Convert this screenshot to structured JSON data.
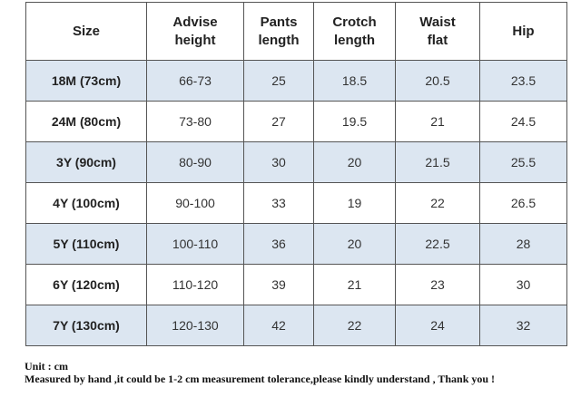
{
  "table": {
    "header": [
      "Size",
      "Advise height",
      "Pants length",
      "Crotch length",
      "Waist flat",
      "Hip"
    ],
    "rows": [
      [
        "18M (73cm)",
        "66-73",
        "25",
        "18.5",
        "20.5",
        "23.5"
      ],
      [
        "24M (80cm)",
        "73-80",
        "27",
        "19.5",
        "21",
        "24.5"
      ],
      [
        "3Y (90cm)",
        "80-90",
        "30",
        "20",
        "21.5",
        "25.5"
      ],
      [
        "4Y (100cm)",
        "90-100",
        "33",
        "19",
        "22",
        "26.5"
      ],
      [
        "5Y (110cm)",
        "100-110",
        "36",
        "20",
        "22.5",
        "28"
      ],
      [
        "6Y (120cm)",
        "110-120",
        "39",
        "21",
        "23",
        "30"
      ],
      [
        "7Y (130cm)",
        "120-130",
        "42",
        "22",
        "24",
        "32"
      ]
    ]
  },
  "footer": {
    "unit": "Unit : cm",
    "note": "Measured by hand ,it could be 1-2 cm measurement tolerance,please kindly understand , Thank you !"
  }
}
